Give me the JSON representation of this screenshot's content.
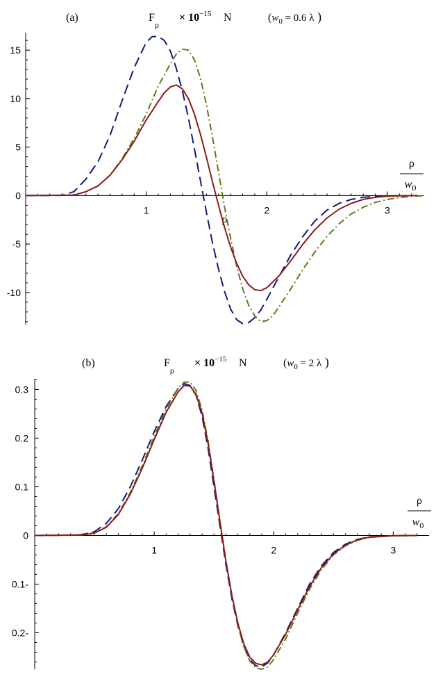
{
  "chart_data": [
    {
      "type": "line",
      "panel_label": "(a)",
      "quantity": "F",
      "quantity_sub": "ρ",
      "scale": "× 10",
      "scale_exp": "−15",
      "unit": "N",
      "param_open": "(",
      "param_var": "w",
      "param_sub": "0",
      "param_rest": " = 0.6 λ",
      "param_close": ")",
      "xlabel_num": "ρ",
      "xlabel_den_var": "w",
      "xlabel_den_sub": "0",
      "xlim": [
        0,
        3.3
      ],
      "ylim": [
        -13.3,
        16.8
      ],
      "xticks": [
        {
          "v": 1,
          "label": "1"
        },
        {
          "v": 2,
          "label": "2"
        },
        {
          "v": 3,
          "label": "3"
        }
      ],
      "yticks": [
        {
          "v": 15,
          "label": "15"
        },
        {
          "v": 10,
          "label": "10"
        },
        {
          "v": 5,
          "label": "5"
        },
        {
          "v": 0,
          "label": "0"
        },
        {
          "v": -5,
          "label": "-5"
        },
        {
          "v": -10,
          "label": "-10"
        }
      ],
      "stray_label": {
        "x": 1.65,
        "y": -2.8,
        "text": "ρ"
      },
      "series": [
        {
          "color": "#0b1c7a",
          "dash": "14,7",
          "points": [
            [
              0,
              0
            ],
            [
              0.3,
              0.02
            ],
            [
              0.4,
              0.4
            ],
            [
              0.5,
              1.7
            ],
            [
              0.6,
              3.5
            ],
            [
              0.7,
              6.2
            ],
            [
              0.8,
              9.8
            ],
            [
              0.9,
              13.2
            ],
            [
              1.0,
              15.8
            ],
            [
              1.05,
              16.4
            ],
            [
              1.1,
              16.4
            ],
            [
              1.15,
              16.0
            ],
            [
              1.2,
              14.9
            ],
            [
              1.25,
              13.1
            ],
            [
              1.3,
              10.8
            ],
            [
              1.35,
              8.0
            ],
            [
              1.4,
              4.8
            ],
            [
              1.45,
              1.5
            ],
            [
              1.5,
              -1.8
            ],
            [
              1.55,
              -4.9
            ],
            [
              1.6,
              -7.6
            ],
            [
              1.65,
              -9.9
            ],
            [
              1.7,
              -11.7
            ],
            [
              1.75,
              -12.8
            ],
            [
              1.8,
              -13.2
            ],
            [
              1.85,
              -13.1
            ],
            [
              1.9,
              -12.6
            ],
            [
              1.95,
              -11.8
            ],
            [
              2.0,
              -10.7
            ],
            [
              2.1,
              -8.4
            ],
            [
              2.2,
              -6.1
            ],
            [
              2.3,
              -4.2
            ],
            [
              2.4,
              -2.6
            ],
            [
              2.5,
              -1.5
            ],
            [
              2.6,
              -0.8
            ],
            [
              2.7,
              -0.4
            ],
            [
              2.8,
              -0.18
            ],
            [
              2.9,
              -0.08
            ],
            [
              3.0,
              -0.03
            ],
            [
              3.1,
              -0.01
            ],
            [
              3.25,
              0
            ]
          ]
        },
        {
          "color": "#5e7a1a",
          "dash": "10,4,2,4",
          "points": [
            [
              0,
              0
            ],
            [
              0.4,
              0.05
            ],
            [
              0.5,
              0.4
            ],
            [
              0.6,
              1.0
            ],
            [
              0.7,
              2.1
            ],
            [
              0.8,
              3.8
            ],
            [
              0.9,
              5.9
            ],
            [
              1.0,
              8.4
            ],
            [
              1.1,
              11.3
            ],
            [
              1.2,
              13.6
            ],
            [
              1.25,
              14.6
            ],
            [
              1.3,
              15.1
            ],
            [
              1.35,
              15.0
            ],
            [
              1.4,
              14.0
            ],
            [
              1.45,
              12.1
            ],
            [
              1.5,
              9.3
            ],
            [
              1.55,
              6.0
            ],
            [
              1.6,
              2.4
            ],
            [
              1.65,
              -1.2
            ],
            [
              1.7,
              -4.4
            ],
            [
              1.75,
              -7.3
            ],
            [
              1.8,
              -9.6
            ],
            [
              1.85,
              -11.3
            ],
            [
              1.9,
              -12.4
            ],
            [
              1.95,
              -13.0
            ],
            [
              2.0,
              -12.9
            ],
            [
              2.05,
              -12.4
            ],
            [
              2.1,
              -11.5
            ],
            [
              2.2,
              -9.6
            ],
            [
              2.3,
              -7.6
            ],
            [
              2.4,
              -5.8
            ],
            [
              2.5,
              -4.2
            ],
            [
              2.6,
              -2.9
            ],
            [
              2.7,
              -1.9
            ],
            [
              2.8,
              -1.2
            ],
            [
              2.9,
              -0.7
            ],
            [
              3.0,
              -0.4
            ],
            [
              3.1,
              -0.2
            ],
            [
              3.2,
              -0.08
            ],
            [
              3.3,
              -0.03
            ]
          ]
        },
        {
          "color": "#8b1a1a",
          "dash": "",
          "points": [
            [
              0,
              0
            ],
            [
              0.4,
              0.05
            ],
            [
              0.5,
              0.4
            ],
            [
              0.6,
              1.0
            ],
            [
              0.7,
              2.1
            ],
            [
              0.8,
              3.7
            ],
            [
              0.9,
              5.6
            ],
            [
              1.0,
              7.8
            ],
            [
              1.1,
              9.7
            ],
            [
              1.15,
              10.6
            ],
            [
              1.2,
              11.2
            ],
            [
              1.25,
              11.4
            ],
            [
              1.3,
              11.0
            ],
            [
              1.35,
              10.0
            ],
            [
              1.4,
              8.4
            ],
            [
              1.45,
              6.3
            ],
            [
              1.5,
              3.9
            ],
            [
              1.55,
              1.4
            ],
            [
              1.6,
              -1.0
            ],
            [
              1.65,
              -3.3
            ],
            [
              1.7,
              -5.3
            ],
            [
              1.75,
              -7.0
            ],
            [
              1.8,
              -8.3
            ],
            [
              1.85,
              -9.2
            ],
            [
              1.9,
              -9.7
            ],
            [
              1.95,
              -9.8
            ],
            [
              2.0,
              -9.5
            ],
            [
              2.1,
              -8.3
            ],
            [
              2.2,
              -6.7
            ],
            [
              2.3,
              -5.0
            ],
            [
              2.4,
              -3.5
            ],
            [
              2.5,
              -2.3
            ],
            [
              2.6,
              -1.4
            ],
            [
              2.7,
              -0.8
            ],
            [
              2.8,
              -0.4
            ],
            [
              2.9,
              -0.18
            ],
            [
              3.0,
              -0.07
            ],
            [
              3.1,
              -0.02
            ],
            [
              3.25,
              0
            ]
          ]
        }
      ]
    },
    {
      "type": "line",
      "panel_label": "(b)",
      "quantity": "F",
      "quantity_sub": "ρ",
      "scale": "× 10",
      "scale_exp": "−15",
      "unit": "N",
      "param_open": "(",
      "param_var": "w",
      "param_sub": "0",
      "param_rest": " = 2 λ",
      "param_close": ")",
      "xlabel_num": "ρ",
      "xlabel_den_var": "w",
      "xlabel_den_sub": "0",
      "xlim": [
        0,
        3.3
      ],
      "ylim": [
        -0.275,
        0.322
      ],
      "xticks": [
        {
          "v": 1,
          "label": "1"
        },
        {
          "v": 2,
          "label": "2"
        },
        {
          "v": 3,
          "label": "3"
        }
      ],
      "yticks": [
        {
          "v": 0.3,
          "label": "0.3"
        },
        {
          "v": 0.2,
          "label": "0.2"
        },
        {
          "v": 0.1,
          "label": "0.1"
        },
        {
          "v": 0,
          "label": "0"
        },
        {
          "v": -0.1,
          "label": "0.1-"
        },
        {
          "v": -0.2,
          "label": "0.2-"
        }
      ],
      "series": [
        {
          "color": "#0b1c7a",
          "dash": "14,7",
          "points": [
            [
              0,
              0
            ],
            [
              0.3,
              0.0005
            ],
            [
              0.4,
              0.002
            ],
            [
              0.5,
              0.008
            ],
            [
              0.6,
              0.025
            ],
            [
              0.7,
              0.055
            ],
            [
              0.8,
              0.1
            ],
            [
              0.9,
              0.155
            ],
            [
              1.0,
              0.213
            ],
            [
              1.1,
              0.265
            ],
            [
              1.2,
              0.302
            ],
            [
              1.25,
              0.312
            ],
            [
              1.3,
              0.308
            ],
            [
              1.35,
              0.288
            ],
            [
              1.4,
              0.245
            ],
            [
              1.45,
              0.18
            ],
            [
              1.5,
              0.1
            ],
            [
              1.55,
              0.02
            ],
            [
              1.6,
              -0.06
            ],
            [
              1.65,
              -0.13
            ],
            [
              1.7,
              -0.185
            ],
            [
              1.75,
              -0.228
            ],
            [
              1.8,
              -0.255
            ],
            [
              1.85,
              -0.268
            ],
            [
              1.9,
              -0.27
            ],
            [
              1.95,
              -0.262
            ],
            [
              2.0,
              -0.245
            ],
            [
              2.1,
              -0.2
            ],
            [
              2.2,
              -0.15
            ],
            [
              2.3,
              -0.1
            ],
            [
              2.4,
              -0.062
            ],
            [
              2.5,
              -0.035
            ],
            [
              2.6,
              -0.018
            ],
            [
              2.7,
              -0.008
            ],
            [
              2.8,
              -0.003
            ],
            [
              3.0,
              -0.0005
            ],
            [
              3.2,
              0
            ]
          ]
        },
        {
          "color": "#5e7a1a",
          "dash": "10,4,2,4",
          "points": [
            [
              0,
              0
            ],
            [
              0.4,
              0.001
            ],
            [
              0.5,
              0.006
            ],
            [
              0.6,
              0.018
            ],
            [
              0.7,
              0.045
            ],
            [
              0.8,
              0.088
            ],
            [
              0.9,
              0.143
            ],
            [
              1.0,
              0.203
            ],
            [
              1.1,
              0.26
            ],
            [
              1.2,
              0.302
            ],
            [
              1.25,
              0.315
            ],
            [
              1.3,
              0.315
            ],
            [
              1.35,
              0.298
            ],
            [
              1.4,
              0.258
            ],
            [
              1.45,
              0.195
            ],
            [
              1.5,
              0.115
            ],
            [
              1.55,
              0.03
            ],
            [
              1.6,
              -0.052
            ],
            [
              1.65,
              -0.125
            ],
            [
              1.7,
              -0.183
            ],
            [
              1.75,
              -0.228
            ],
            [
              1.8,
              -0.258
            ],
            [
              1.85,
              -0.272
            ],
            [
              1.9,
              -0.275
            ],
            [
              1.95,
              -0.27
            ],
            [
              2.0,
              -0.255
            ],
            [
              2.1,
              -0.212
            ],
            [
              2.2,
              -0.16
            ],
            [
              2.3,
              -0.11
            ],
            [
              2.4,
              -0.07
            ],
            [
              2.5,
              -0.04
            ],
            [
              2.6,
              -0.021
            ],
            [
              2.7,
              -0.01
            ],
            [
              2.8,
              -0.004
            ],
            [
              3.0,
              -0.0008
            ],
            [
              3.2,
              0
            ]
          ]
        },
        {
          "color": "#8b1a1a",
          "dash": "",
          "points": [
            [
              0,
              0
            ],
            [
              0.4,
              0.001
            ],
            [
              0.5,
              0.005
            ],
            [
              0.6,
              0.017
            ],
            [
              0.7,
              0.043
            ],
            [
              0.8,
              0.085
            ],
            [
              0.9,
              0.138
            ],
            [
              1.0,
              0.197
            ],
            [
              1.1,
              0.253
            ],
            [
              1.2,
              0.295
            ],
            [
              1.25,
              0.308
            ],
            [
              1.3,
              0.307
            ],
            [
              1.35,
              0.29
            ],
            [
              1.4,
              0.252
            ],
            [
              1.45,
              0.19
            ],
            [
              1.5,
              0.112
            ],
            [
              1.55,
              0.028
            ],
            [
              1.6,
              -0.053
            ],
            [
              1.65,
              -0.123
            ],
            [
              1.7,
              -0.18
            ],
            [
              1.75,
              -0.223
            ],
            [
              1.8,
              -0.25
            ],
            [
              1.85,
              -0.263
            ],
            [
              1.9,
              -0.266
            ],
            [
              1.95,
              -0.26
            ],
            [
              2.0,
              -0.245
            ],
            [
              2.1,
              -0.203
            ],
            [
              2.2,
              -0.153
            ],
            [
              2.3,
              -0.105
            ],
            [
              2.4,
              -0.066
            ],
            [
              2.5,
              -0.038
            ],
            [
              2.6,
              -0.02
            ],
            [
              2.7,
              -0.009
            ],
            [
              2.8,
              -0.0035
            ],
            [
              3.0,
              -0.0006
            ],
            [
              3.2,
              0
            ]
          ]
        }
      ]
    }
  ]
}
